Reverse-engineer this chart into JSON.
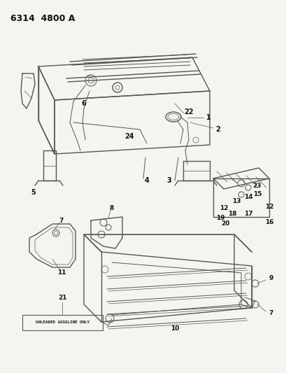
{
  "title": "6314  4800 A",
  "bg": "#f5f5f0",
  "lc": "#555555",
  "tc": "#111111",
  "fig_w": 4.1,
  "fig_h": 5.33,
  "dpi": 100,
  "unleaded_text": "UNLEADED GASOLINE ONLY"
}
